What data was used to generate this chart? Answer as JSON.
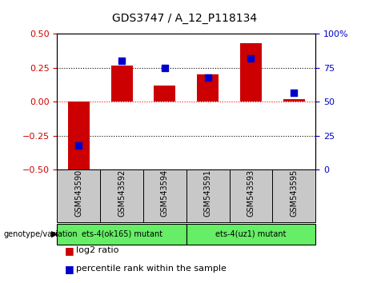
{
  "title": "GDS3747 / A_12_P118134",
  "categories": [
    "GSM543590",
    "GSM543592",
    "GSM543594",
    "GSM543591",
    "GSM543593",
    "GSM543595"
  ],
  "log2_ratio": [
    -0.55,
    0.27,
    0.12,
    0.2,
    0.43,
    0.02
  ],
  "percentile": [
    18,
    80,
    75,
    68,
    82,
    57
  ],
  "bar_color": "#cc0000",
  "dot_color": "#0000cc",
  "ylim_left": [
    -0.5,
    0.5
  ],
  "ylim_right": [
    0,
    100
  ],
  "yticks_left": [
    -0.5,
    -0.25,
    0,
    0.25,
    0.5
  ],
  "yticks_right": [
    0,
    25,
    50,
    75,
    100
  ],
  "ytick_labels_right": [
    "0",
    "25",
    "50",
    "75",
    "100%"
  ],
  "hlines": [
    -0.25,
    0,
    0.25
  ],
  "hline_colors": [
    "black",
    "red",
    "black"
  ],
  "hline_styles": [
    "dotted",
    "dotted",
    "dotted"
  ],
  "group1_label": "ets-4(ok165) mutant",
  "group2_label": "ets-4(uz1) mutant",
  "group_bg_color": "#66ee66",
  "sample_area_bg": "#c8c8c8",
  "legend_bar_label": "log2 ratio",
  "legend_dot_label": "percentile rank within the sample",
  "genotype_label": "genotype/variation",
  "bar_width": 0.5,
  "dot_size": 30,
  "title_fontsize": 10,
  "axis_fontsize": 8,
  "label_fontsize": 7,
  "legend_fontsize": 8
}
